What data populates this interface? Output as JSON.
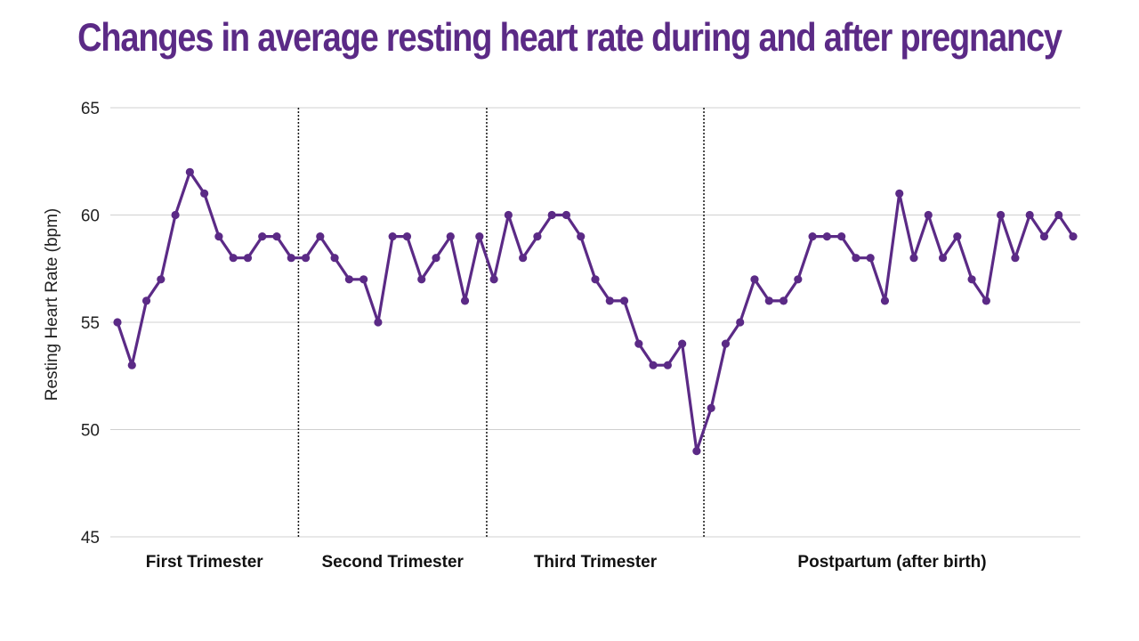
{
  "chart_data": {
    "type": "line",
    "title": "Changes in average resting heart rate during and after pregnancy",
    "xlabel": "",
    "ylabel": "Resting Heart Rate (bpm)",
    "ylim": [
      45,
      65
    ],
    "yticks": [
      45,
      50,
      55,
      60,
      65
    ],
    "grid": true,
    "line_color": "#5b2a86",
    "series": [
      {
        "name": "Resting heart rate",
        "values": [
          55,
          53,
          56,
          57,
          60,
          62,
          61,
          59,
          58,
          58,
          59,
          59,
          58,
          58,
          59,
          58,
          57,
          57,
          55,
          59,
          59,
          57,
          58,
          59,
          56,
          59,
          57,
          60,
          58,
          59,
          60,
          60,
          59,
          57,
          56,
          56,
          54,
          53,
          53,
          54,
          49,
          51,
          54,
          55,
          57,
          56,
          56,
          57,
          59,
          59,
          59,
          58,
          58,
          56,
          61,
          58,
          60,
          58,
          59,
          57,
          56,
          60,
          58,
          60,
          59,
          60,
          59
        ]
      }
    ],
    "phases": [
      {
        "label": "First Trimester",
        "start_index": 0,
        "end_index": 12
      },
      {
        "label": "Second Trimester",
        "start_index": 13,
        "end_index": 25
      },
      {
        "label": "Third Trimester",
        "start_index": 26,
        "end_index": 40
      },
      {
        "label": "Postpartum (after birth)",
        "start_index": 41,
        "end_index": 66
      }
    ]
  }
}
